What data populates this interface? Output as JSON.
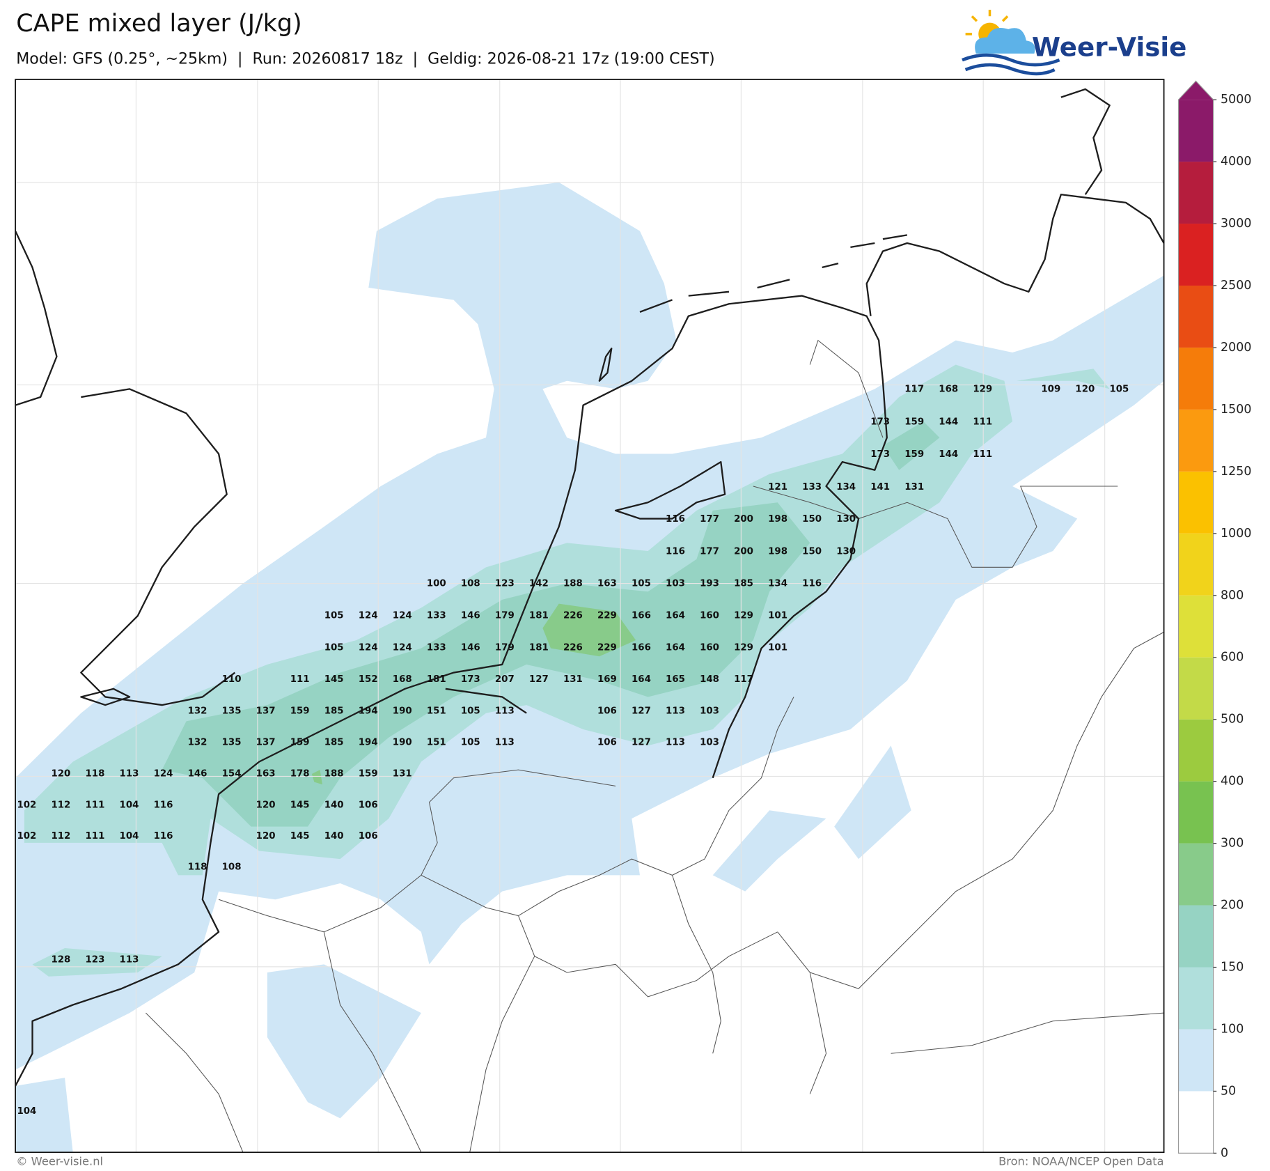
{
  "header": {
    "title": "CAPE mixed layer (J/kg)",
    "subtitle": "Model: GFS (0.25°, ~25km)  |  Run: 20260817 18z  |  Geldig: 2026-08-21 17z (19:00 CEST)"
  },
  "logo": {
    "text": "Weer-Visie"
  },
  "map": {
    "grid_labels": [
      [
        null,
        null,
        null,
        null,
        null,
        null,
        null,
        null,
        null,
        null,
        null,
        null,
        null,
        null,
        null,
        null,
        null,
        null,
        null,
        null,
        null,
        null,
        null,
        null,
        null,
        null,
        117,
        168,
        129,
        null,
        109,
        120,
        105
      ],
      [
        null,
        null,
        null,
        null,
        null,
        null,
        null,
        null,
        null,
        null,
        null,
        null,
        null,
        null,
        null,
        null,
        null,
        null,
        null,
        null,
        null,
        null,
        null,
        null,
        null,
        173,
        159,
        144,
        111
      ],
      [
        null,
        null,
        null,
        null,
        null,
        null,
        null,
        null,
        null,
        null,
        null,
        null,
        null,
        null,
        null,
        null,
        null,
        null,
        null,
        null,
        null,
        null,
        null,
        null,
        null,
        173,
        159,
        144,
        111
      ],
      [
        null,
        null,
        null,
        null,
        null,
        null,
        null,
        null,
        null,
        null,
        null,
        null,
        null,
        null,
        null,
        null,
        null,
        null,
        null,
        null,
        null,
        null,
        121,
        133,
        134,
        141,
        131
      ],
      [
        null,
        null,
        null,
        null,
        null,
        null,
        null,
        null,
        null,
        null,
        null,
        null,
        null,
        null,
        null,
        null,
        null,
        null,
        null,
        116,
        177,
        200,
        198,
        150,
        130
      ],
      [
        null,
        null,
        null,
        null,
        null,
        null,
        null,
        null,
        null,
        null,
        null,
        null,
        null,
        null,
        null,
        null,
        null,
        null,
        null,
        116,
        177,
        200,
        198,
        150,
        130
      ],
      [
        null,
        null,
        null,
        null,
        null,
        null,
        null,
        null,
        null,
        null,
        null,
        null,
        100,
        108,
        123,
        142,
        188,
        163,
        105,
        103,
        193,
        185,
        134,
        116
      ],
      [
        null,
        null,
        null,
        null,
        null,
        null,
        null,
        null,
        null,
        105,
        124,
        124,
        133,
        146,
        179,
        181,
        226,
        229,
        166,
        164,
        160,
        129,
        101
      ],
      [
        null,
        null,
        null,
        null,
        null,
        null,
        null,
        null,
        null,
        105,
        124,
        124,
        133,
        146,
        179,
        181,
        226,
        229,
        166,
        164,
        160,
        129,
        101
      ],
      [
        null,
        null,
        null,
        null,
        null,
        null,
        110,
        null,
        111,
        145,
        152,
        168,
        181,
        173,
        207,
        127,
        131,
        169,
        164,
        165,
        148,
        117
      ],
      [
        null,
        null,
        null,
        null,
        null,
        132,
        135,
        137,
        159,
        185,
        194,
        190,
        151,
        105,
        113,
        null,
        null,
        106,
        127,
        113,
        103
      ],
      [
        null,
        null,
        null,
        null,
        null,
        132,
        135,
        137,
        159,
        185,
        194,
        190,
        151,
        105,
        113,
        null,
        null,
        106,
        127,
        113,
        103
      ],
      [
        null,
        120,
        118,
        113,
        124,
        146,
        154,
        163,
        178,
        188,
        159,
        131
      ],
      [
        102,
        112,
        111,
        104,
        116,
        null,
        null,
        120,
        145,
        140,
        106
      ],
      [
        102,
        112,
        111,
        104,
        116,
        null,
        null,
        120,
        145,
        140,
        106
      ],
      [
        null,
        null,
        null,
        null,
        null,
        118,
        108
      ],
      [],
      [],
      [
        null,
        128,
        123,
        113
      ],
      [],
      [],
      [],
      [],
      [
        104
      ]
    ]
  },
  "colorbar": {
    "levels": [
      0,
      50,
      100,
      150,
      200,
      300,
      400,
      500,
      600,
      800,
      1000,
      1250,
      1500,
      2000,
      2500,
      3000,
      4000,
      5000
    ],
    "colors": [
      "#ffffff",
      "#cfe6f6",
      "#b0dfdc",
      "#96d3c3",
      "#88cb8a",
      "#78c250",
      "#9ccb3f",
      "#c3da48",
      "#dee039",
      "#f1d31b",
      "#fbc100",
      "#fb9a0f",
      "#f57c0a",
      "#e94d14",
      "#da2121",
      "#b51d3d",
      "#8b1a69"
    ]
  },
  "footer": {
    "copyright": "© Weer-visie.nl",
    "source": "Bron: NOAA/NCEP Open Data"
  }
}
